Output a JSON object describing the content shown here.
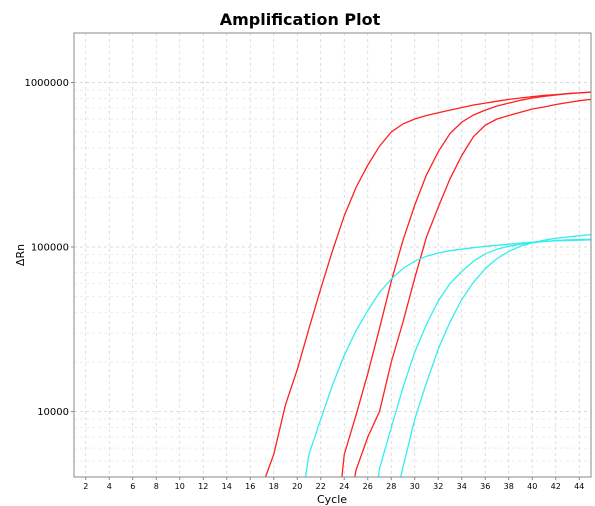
{
  "chart_data": {
    "type": "line",
    "title": "Amplification Plot",
    "xlabel": "Cycle",
    "ylabel": "ΔRn",
    "xlim": [
      1,
      45
    ],
    "ylim": [
      4000,
      2000000
    ],
    "yscale": "log",
    "x_ticks": [
      2,
      4,
      6,
      8,
      10,
      12,
      14,
      16,
      18,
      20,
      22,
      24,
      26,
      28,
      30,
      32,
      34,
      36,
      38,
      40,
      42,
      44
    ],
    "y_ticks": [
      {
        "value": 10000,
        "label": "10000"
      },
      {
        "value": 100000,
        "label": "100000"
      },
      {
        "value": 1000000,
        "label": "1000000"
      }
    ],
    "grid": true,
    "colors": {
      "red": "#ff2020",
      "cyan": "#33eeee"
    },
    "series": [
      {
        "color": "red",
        "x": [
          17.3,
          18,
          19,
          20,
          21,
          22,
          23,
          24,
          25,
          26,
          27,
          28,
          29,
          30,
          31,
          32,
          33,
          34,
          35,
          36,
          37,
          38,
          39,
          40,
          41,
          42,
          43,
          44,
          45
        ],
        "values": [
          4000,
          5500,
          11000,
          18000,
          32000,
          56000,
          95000,
          155000,
          230000,
          315000,
          410000,
          500000,
          560000,
          600000,
          630000,
          655000,
          680000,
          705000,
          730000,
          750000,
          770000,
          790000,
          805000,
          820000,
          835000,
          845000,
          855000,
          865000,
          875000
        ]
      },
      {
        "color": "red",
        "x": [
          23.8,
          24,
          25,
          26,
          27,
          28,
          29,
          30,
          31,
          32,
          33,
          34,
          35,
          36,
          37,
          38,
          39,
          40,
          41,
          42,
          43,
          44,
          45
        ],
        "values": [
          4000,
          5500,
          9500,
          17000,
          32000,
          62000,
          110000,
          180000,
          275000,
          380000,
          490000,
          575000,
          635000,
          680000,
          720000,
          750000,
          780000,
          805000,
          825000,
          840000,
          855000,
          865000,
          875000
        ]
      },
      {
        "color": "red",
        "x": [
          24.9,
          25,
          26,
          27,
          28,
          29,
          30,
          31,
          32,
          33,
          34,
          35,
          36,
          37,
          38,
          39,
          40,
          41,
          42,
          43,
          44,
          45
        ],
        "values": [
          4000,
          4400,
          7000,
          10000,
          20000,
          35000,
          65000,
          115000,
          175000,
          260000,
          360000,
          470000,
          550000,
          600000,
          630000,
          660000,
          690000,
          710000,
          735000,
          755000,
          775000,
          790000
        ]
      },
      {
        "color": "cyan",
        "x": [
          20.7,
          21,
          22,
          23,
          24,
          25,
          26,
          27,
          28,
          29,
          30,
          31,
          32,
          33,
          34,
          35,
          36,
          37,
          38,
          39,
          40,
          41,
          42,
          43,
          44,
          45
        ],
        "values": [
          4000,
          5500,
          9000,
          14500,
          22000,
          31000,
          41000,
          53000,
          64000,
          74000,
          82000,
          88000,
          92000,
          95000,
          97000,
          99000,
          101000,
          102500,
          104000,
          105500,
          107000,
          108000,
          109000,
          109500,
          110000,
          110500
        ]
      },
      {
        "color": "cyan",
        "x": [
          26.9,
          27,
          28,
          29,
          30,
          31,
          32,
          33,
          34,
          35,
          36,
          37,
          38,
          39,
          40,
          41,
          42,
          43,
          44,
          45
        ],
        "values": [
          4000,
          4500,
          8000,
          14000,
          23000,
          34000,
          47000,
          60000,
          71000,
          82000,
          91000,
          97000,
          101000,
          104000,
          106000,
          108000,
          109500,
          110500,
          111000,
          111500
        ]
      },
      {
        "color": "cyan",
        "x": [
          28.8,
          29,
          30,
          31,
          32,
          33,
          34,
          35,
          36,
          37,
          38,
          39,
          40,
          41,
          42,
          43,
          44,
          45
        ],
        "values": [
          4000,
          4600,
          9000,
          15000,
          24000,
          35000,
          48000,
          61000,
          74000,
          85000,
          94000,
          101000,
          106000,
          110000,
          113000,
          115000,
          117000,
          119000
        ]
      }
    ]
  }
}
